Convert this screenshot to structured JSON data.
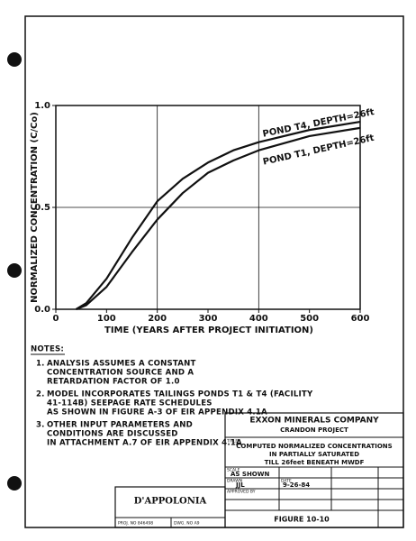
{
  "chart_data": {
    "type": "line",
    "xlabel": "TIME (YEARS AFTER PROJECT INITIATION)",
    "ylabel": "NORMALIZED CONCENTRATION (C/Co)",
    "x": [
      40,
      60,
      100,
      150,
      200,
      250,
      300,
      350,
      400,
      500,
      600
    ],
    "series": [
      {
        "name": "POND T4, DEPTH=26ft",
        "color": "#111111",
        "values": [
          0,
          0.03,
          0.15,
          0.35,
          0.53,
          0.64,
          0.72,
          0.78,
          0.82,
          0.88,
          0.92
        ]
      },
      {
        "name": "POND T1, DEPTH=26ft",
        "color": "#111111",
        "values": [
          0,
          0.02,
          0.11,
          0.28,
          0.44,
          0.57,
          0.67,
          0.73,
          0.78,
          0.85,
          0.89
        ]
      }
    ],
    "xlim": [
      0,
      600
    ],
    "xticks": [
      0,
      100,
      200,
      300,
      400,
      500,
      600
    ],
    "ylim": [
      0,
      1
    ],
    "yticks": [
      {
        "value": 0,
        "label": "0.0"
      },
      {
        "value": 0.5,
        "label": "0.5"
      },
      {
        "value": 1,
        "label": "1.0"
      }
    ],
    "xgrid": [
      200,
      400
    ],
    "ygrid": [
      0.5
    ]
  },
  "notes": {
    "heading": "NOTES:",
    "items": [
      {
        "number": "1.",
        "lines": [
          "ANALYSIS ASSUMES A CONSTANT",
          "CONCENTRATION SOURCE AND A",
          "RETARDATION FACTOR OF 1.0"
        ]
      },
      {
        "number": "2.",
        "lines": [
          "MODEL INCORPORATES TAILINGS PONDS T1 & T4 (FACILITY",
          "41-114B)  SEEPAGE RATE SCHEDULES",
          "AS SHOWN IN FIGURE A-3 OF EIR APPENDIX 4.1A"
        ]
      },
      {
        "number": "3.",
        "lines": [
          "OTHER INPUT PARAMETERS AND",
          "CONDITIONS ARE DISCUSSED",
          "IN ATTACHMENT A.7 OF EIR APPENDIX 4.1A"
        ]
      }
    ]
  },
  "title_block": {
    "company": "EXXON MINERALS COMPANY",
    "project": "CRANDON PROJECT",
    "title_label": "TITLE",
    "title_lines": [
      "COMPUTED NORMALIZED CONCENTRATIONS",
      "IN PARTIALLY SATURATED",
      "TILL 26feet BENEATH MWDF"
    ],
    "scale_label": "SCALE",
    "scale": "AS SHOWN",
    "drawn_label": "DRAWN",
    "drawn": "JJL",
    "date_label": "DATE",
    "date": "9-26-84",
    "approved_label": "APPROVED BY",
    "figure": "FIGURE 10-10",
    "firm": "D'APPOLONIA",
    "proj_no": "PROJ. NO 846498",
    "dwg_no": "DWG. NO A9"
  }
}
